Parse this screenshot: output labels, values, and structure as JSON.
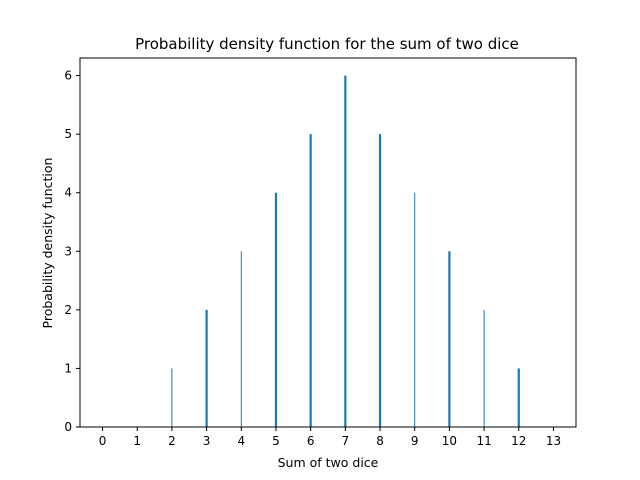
{
  "chart_data": {
    "type": "bar",
    "title": "Probability density function for the sum of two dice",
    "xlabel": "Sum of two dice",
    "ylabel": "Probability density function",
    "xlim": [
      -0.65,
      13.65
    ],
    "ylim": [
      0,
      6.3
    ],
    "xticks": [
      "0",
      "1",
      "2",
      "3",
      "4",
      "5",
      "6",
      "7",
      "8",
      "9",
      "10",
      "11",
      "12",
      "13"
    ],
    "yticks": [
      "0",
      "1",
      "2",
      "3",
      "4",
      "5",
      "6"
    ],
    "x": [
      2,
      3,
      4,
      5,
      6,
      7,
      8,
      9,
      10,
      11,
      12
    ],
    "values": [
      1,
      2,
      3,
      4,
      5,
      6,
      5,
      4,
      3,
      2,
      1
    ],
    "grid": false,
    "bar_color": "#1f77b4"
  }
}
